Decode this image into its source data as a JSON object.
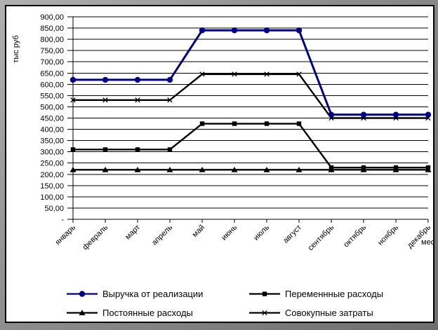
{
  "window": {
    "background": "#ffffff",
    "frame_border": "#000000",
    "outer_background": "#8f8f8f"
  },
  "chart_data": {
    "type": "line",
    "title": "",
    "ylabel": "тыс руб",
    "xlabel": "мес",
    "categories": [
      "январь",
      "февраль",
      "март",
      "апрель",
      "май",
      "июнь",
      "июль",
      "август",
      "сентябрь",
      "октябрь",
      "ноябрь",
      "декабрь"
    ],
    "y_tick_labels": [
      "900,00",
      "850,00",
      "800,00",
      "750,00",
      "700,00",
      "650,00",
      "600,00",
      "550,00",
      "500,00",
      "450,00",
      "400,00",
      "350,00",
      "300,00",
      "250,00",
      "200,00",
      "150,00",
      "100,00",
      "50,00",
      "-"
    ],
    "ylim": [
      0,
      900
    ],
    "y_tick_step": 50,
    "grid": true,
    "legend_position": "bottom",
    "series": [
      {
        "name": "Выручка от реализации",
        "marker": "circle",
        "color": "#000080",
        "values": [
          620,
          620,
          620,
          620,
          840,
          840,
          840,
          840,
          465,
          465,
          465,
          465
        ]
      },
      {
        "name": "Переменнные расходы",
        "marker": "square",
        "color": "#000000",
        "values": [
          310,
          310,
          310,
          310,
          425,
          425,
          425,
          425,
          230,
          230,
          230,
          230
        ]
      },
      {
        "name": "Постоянные расходы",
        "marker": "triangle",
        "color": "#000000",
        "values": [
          220,
          220,
          220,
          220,
          220,
          220,
          220,
          220,
          220,
          220,
          220,
          220
        ]
      },
      {
        "name": "Совокупные затраты",
        "marker": "x",
        "color": "#000000",
        "values": [
          530,
          530,
          530,
          530,
          645,
          645,
          645,
          645,
          450,
          450,
          450,
          450
        ]
      }
    ]
  }
}
